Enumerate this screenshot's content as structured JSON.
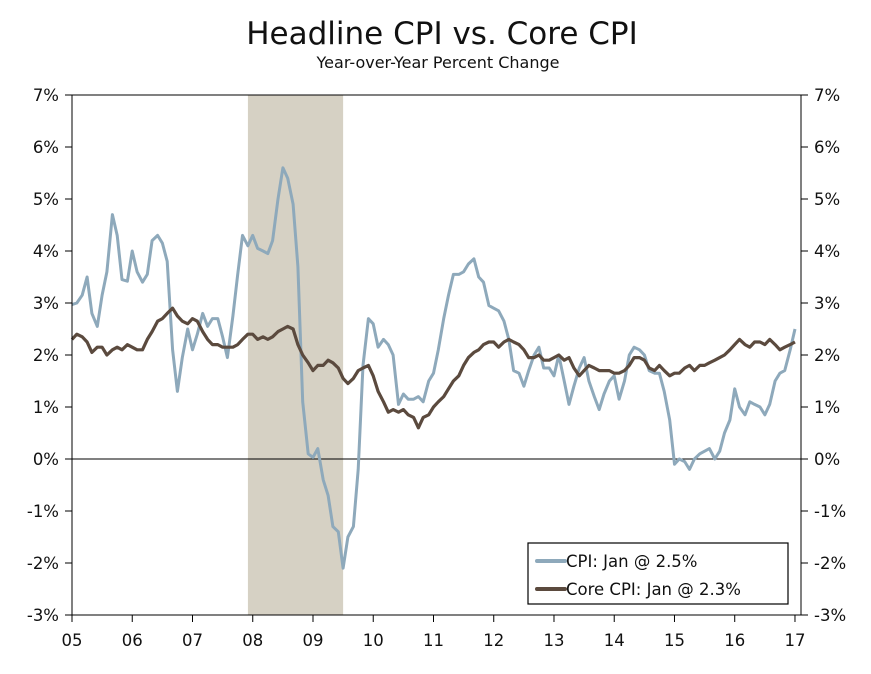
{
  "chart_data": {
    "type": "line",
    "title": "Headline CPI vs. Core CPI",
    "subtitle": "Year-over-Year Percent Change",
    "xlabel": "",
    "ylabel": "",
    "ylim": [
      -3,
      7
    ],
    "xlim": [
      2005.0,
      2017.1
    ],
    "grid": false,
    "legend_position": "bottom-right",
    "x_tick_labels": [
      "05",
      "06",
      "07",
      "08",
      "09",
      "10",
      "11",
      "12",
      "13",
      "14",
      "15",
      "16",
      "17"
    ],
    "y_tick_labels": [
      "7%",
      "6%",
      "5%",
      "4%",
      "3%",
      "2%",
      "1%",
      "0%",
      "-1%",
      "-2%",
      "-3%"
    ],
    "recession": {
      "start": 2007.92,
      "end": 2009.5,
      "color": "#d6d1c4"
    },
    "series": [
      {
        "name": "CPI",
        "legend_label": "CPI: Jan @ 2.5%",
        "color": "#8ea9bb",
        "points": [
          [
            2005.0,
            2.97
          ],
          [
            2005.08,
            3.0
          ],
          [
            2005.17,
            3.15
          ],
          [
            2005.25,
            3.5
          ],
          [
            2005.33,
            2.8
          ],
          [
            2005.42,
            2.55
          ],
          [
            2005.5,
            3.15
          ],
          [
            2005.58,
            3.6
          ],
          [
            2005.67,
            4.7
          ],
          [
            2005.75,
            4.3
          ],
          [
            2005.83,
            3.45
          ],
          [
            2005.92,
            3.42
          ],
          [
            2006.0,
            4.0
          ],
          [
            2006.08,
            3.6
          ],
          [
            2006.17,
            3.4
          ],
          [
            2006.25,
            3.55
          ],
          [
            2006.33,
            4.2
          ],
          [
            2006.42,
            4.3
          ],
          [
            2006.5,
            4.15
          ],
          [
            2006.58,
            3.8
          ],
          [
            2006.67,
            2.1
          ],
          [
            2006.75,
            1.3
          ],
          [
            2006.83,
            1.95
          ],
          [
            2006.92,
            2.5
          ],
          [
            2007.0,
            2.1
          ],
          [
            2007.08,
            2.4
          ],
          [
            2007.17,
            2.8
          ],
          [
            2007.25,
            2.55
          ],
          [
            2007.33,
            2.7
          ],
          [
            2007.42,
            2.7
          ],
          [
            2007.5,
            2.35
          ],
          [
            2007.58,
            1.95
          ],
          [
            2007.67,
            2.75
          ],
          [
            2007.75,
            3.55
          ],
          [
            2007.83,
            4.3
          ],
          [
            2007.92,
            4.1
          ],
          [
            2008.0,
            4.3
          ],
          [
            2008.08,
            4.05
          ],
          [
            2008.17,
            4.0
          ],
          [
            2008.25,
            3.95
          ],
          [
            2008.33,
            4.2
          ],
          [
            2008.42,
            5.0
          ],
          [
            2008.5,
            5.6
          ],
          [
            2008.58,
            5.4
          ],
          [
            2008.67,
            4.9
          ],
          [
            2008.75,
            3.7
          ],
          [
            2008.83,
            1.1
          ],
          [
            2008.92,
            0.1
          ],
          [
            2009.0,
            0.03
          ],
          [
            2009.08,
            0.2
          ],
          [
            2009.17,
            -0.4
          ],
          [
            2009.25,
            -0.7
          ],
          [
            2009.33,
            -1.3
          ],
          [
            2009.42,
            -1.4
          ],
          [
            2009.5,
            -2.1
          ],
          [
            2009.58,
            -1.5
          ],
          [
            2009.67,
            -1.3
          ],
          [
            2009.75,
            -0.2
          ],
          [
            2009.83,
            1.8
          ],
          [
            2009.92,
            2.7
          ],
          [
            2010.0,
            2.6
          ],
          [
            2010.08,
            2.15
          ],
          [
            2010.17,
            2.3
          ],
          [
            2010.25,
            2.2
          ],
          [
            2010.33,
            2.0
          ],
          [
            2010.42,
            1.05
          ],
          [
            2010.5,
            1.25
          ],
          [
            2010.58,
            1.15
          ],
          [
            2010.67,
            1.15
          ],
          [
            2010.75,
            1.2
          ],
          [
            2010.83,
            1.1
          ],
          [
            2010.92,
            1.5
          ],
          [
            2011.0,
            1.65
          ],
          [
            2011.08,
            2.1
          ],
          [
            2011.17,
            2.7
          ],
          [
            2011.25,
            3.15
          ],
          [
            2011.33,
            3.55
          ],
          [
            2011.42,
            3.55
          ],
          [
            2011.5,
            3.6
          ],
          [
            2011.58,
            3.75
          ],
          [
            2011.67,
            3.85
          ],
          [
            2011.75,
            3.5
          ],
          [
            2011.83,
            3.4
          ],
          [
            2011.92,
            2.95
          ],
          [
            2012.0,
            2.9
          ],
          [
            2012.08,
            2.85
          ],
          [
            2012.17,
            2.65
          ],
          [
            2012.25,
            2.3
          ],
          [
            2012.33,
            1.7
          ],
          [
            2012.42,
            1.65
          ],
          [
            2012.5,
            1.4
          ],
          [
            2012.58,
            1.7
          ],
          [
            2012.67,
            2.0
          ],
          [
            2012.75,
            2.15
          ],
          [
            2012.83,
            1.75
          ],
          [
            2012.92,
            1.75
          ],
          [
            2013.0,
            1.6
          ],
          [
            2013.08,
            2.0
          ],
          [
            2013.17,
            1.5
          ],
          [
            2013.25,
            1.05
          ],
          [
            2013.33,
            1.4
          ],
          [
            2013.42,
            1.75
          ],
          [
            2013.5,
            1.95
          ],
          [
            2013.58,
            1.5
          ],
          [
            2013.67,
            1.2
          ],
          [
            2013.75,
            0.95
          ],
          [
            2013.83,
            1.25
          ],
          [
            2013.92,
            1.5
          ],
          [
            2014.0,
            1.6
          ],
          [
            2014.08,
            1.15
          ],
          [
            2014.17,
            1.5
          ],
          [
            2014.25,
            2.0
          ],
          [
            2014.33,
            2.15
          ],
          [
            2014.42,
            2.1
          ],
          [
            2014.5,
            2.0
          ],
          [
            2014.58,
            1.7
          ],
          [
            2014.67,
            1.65
          ],
          [
            2014.75,
            1.65
          ],
          [
            2014.83,
            1.3
          ],
          [
            2014.92,
            0.75
          ],
          [
            2015.0,
            -0.1
          ],
          [
            2015.08,
            0.0
          ],
          [
            2015.17,
            -0.05
          ],
          [
            2015.25,
            -0.2
          ],
          [
            2015.33,
            0.0
          ],
          [
            2015.42,
            0.1
          ],
          [
            2015.5,
            0.15
          ],
          [
            2015.58,
            0.2
          ],
          [
            2015.67,
            0.0
          ],
          [
            2015.75,
            0.15
          ],
          [
            2015.83,
            0.5
          ],
          [
            2015.92,
            0.75
          ],
          [
            2016.0,
            1.35
          ],
          [
            2016.08,
            1.0
          ],
          [
            2016.17,
            0.85
          ],
          [
            2016.25,
            1.1
          ],
          [
            2016.33,
            1.05
          ],
          [
            2016.42,
            1.0
          ],
          [
            2016.5,
            0.85
          ],
          [
            2016.58,
            1.05
          ],
          [
            2016.67,
            1.5
          ],
          [
            2016.75,
            1.65
          ],
          [
            2016.83,
            1.7
          ],
          [
            2016.92,
            2.1
          ],
          [
            2017.0,
            2.5
          ]
        ]
      },
      {
        "name": "Core CPI",
        "legend_label": "Core CPI: Jan @ 2.3%",
        "color": "#5b4a3e",
        "points": [
          [
            2005.0,
            2.3
          ],
          [
            2005.08,
            2.4
          ],
          [
            2005.17,
            2.35
          ],
          [
            2005.25,
            2.25
          ],
          [
            2005.33,
            2.05
          ],
          [
            2005.42,
            2.15
          ],
          [
            2005.5,
            2.15
          ],
          [
            2005.58,
            2.0
          ],
          [
            2005.67,
            2.1
          ],
          [
            2005.75,
            2.15
          ],
          [
            2005.83,
            2.1
          ],
          [
            2005.92,
            2.2
          ],
          [
            2006.0,
            2.15
          ],
          [
            2006.08,
            2.1
          ],
          [
            2006.17,
            2.1
          ],
          [
            2006.25,
            2.3
          ],
          [
            2006.33,
            2.45
          ],
          [
            2006.42,
            2.65
          ],
          [
            2006.5,
            2.7
          ],
          [
            2006.58,
            2.8
          ],
          [
            2006.67,
            2.9
          ],
          [
            2006.75,
            2.75
          ],
          [
            2006.83,
            2.65
          ],
          [
            2006.92,
            2.6
          ],
          [
            2007.0,
            2.7
          ],
          [
            2007.08,
            2.65
          ],
          [
            2007.17,
            2.45
          ],
          [
            2007.25,
            2.3
          ],
          [
            2007.33,
            2.2
          ],
          [
            2007.42,
            2.2
          ],
          [
            2007.5,
            2.15
          ],
          [
            2007.58,
            2.15
          ],
          [
            2007.67,
            2.15
          ],
          [
            2007.75,
            2.2
          ],
          [
            2007.83,
            2.3
          ],
          [
            2007.92,
            2.4
          ],
          [
            2008.0,
            2.4
          ],
          [
            2008.08,
            2.3
          ],
          [
            2008.17,
            2.35
          ],
          [
            2008.25,
            2.3
          ],
          [
            2008.33,
            2.35
          ],
          [
            2008.42,
            2.45
          ],
          [
            2008.5,
            2.5
          ],
          [
            2008.58,
            2.55
          ],
          [
            2008.67,
            2.5
          ],
          [
            2008.75,
            2.2
          ],
          [
            2008.83,
            2.0
          ],
          [
            2008.92,
            1.85
          ],
          [
            2009.0,
            1.7
          ],
          [
            2009.08,
            1.8
          ],
          [
            2009.17,
            1.8
          ],
          [
            2009.25,
            1.9
          ],
          [
            2009.33,
            1.85
          ],
          [
            2009.42,
            1.75
          ],
          [
            2009.5,
            1.55
          ],
          [
            2009.58,
            1.45
          ],
          [
            2009.67,
            1.55
          ],
          [
            2009.75,
            1.7
          ],
          [
            2009.83,
            1.75
          ],
          [
            2009.92,
            1.8
          ],
          [
            2010.0,
            1.6
          ],
          [
            2010.08,
            1.3
          ],
          [
            2010.17,
            1.1
          ],
          [
            2010.25,
            0.9
          ],
          [
            2010.33,
            0.95
          ],
          [
            2010.42,
            0.9
          ],
          [
            2010.5,
            0.95
          ],
          [
            2010.58,
            0.85
          ],
          [
            2010.67,
            0.8
          ],
          [
            2010.75,
            0.6
          ],
          [
            2010.83,
            0.8
          ],
          [
            2010.92,
            0.85
          ],
          [
            2011.0,
            1.0
          ],
          [
            2011.08,
            1.1
          ],
          [
            2011.17,
            1.2
          ],
          [
            2011.25,
            1.35
          ],
          [
            2011.33,
            1.5
          ],
          [
            2011.42,
            1.6
          ],
          [
            2011.5,
            1.8
          ],
          [
            2011.58,
            1.95
          ],
          [
            2011.67,
            2.05
          ],
          [
            2011.75,
            2.1
          ],
          [
            2011.83,
            2.2
          ],
          [
            2011.92,
            2.25
          ],
          [
            2012.0,
            2.25
          ],
          [
            2012.08,
            2.15
          ],
          [
            2012.17,
            2.25
          ],
          [
            2012.25,
            2.3
          ],
          [
            2012.33,
            2.25
          ],
          [
            2012.42,
            2.2
          ],
          [
            2012.5,
            2.1
          ],
          [
            2012.58,
            1.95
          ],
          [
            2012.67,
            1.95
          ],
          [
            2012.75,
            2.0
          ],
          [
            2012.83,
            1.9
          ],
          [
            2012.92,
            1.9
          ],
          [
            2013.0,
            1.95
          ],
          [
            2013.08,
            2.0
          ],
          [
            2013.17,
            1.9
          ],
          [
            2013.25,
            1.95
          ],
          [
            2013.33,
            1.75
          ],
          [
            2013.42,
            1.6
          ],
          [
            2013.5,
            1.7
          ],
          [
            2013.58,
            1.8
          ],
          [
            2013.67,
            1.75
          ],
          [
            2013.75,
            1.7
          ],
          [
            2013.83,
            1.7
          ],
          [
            2013.92,
            1.7
          ],
          [
            2014.0,
            1.65
          ],
          [
            2014.08,
            1.65
          ],
          [
            2014.17,
            1.7
          ],
          [
            2014.25,
            1.8
          ],
          [
            2014.33,
            1.95
          ],
          [
            2014.42,
            1.95
          ],
          [
            2014.5,
            1.9
          ],
          [
            2014.58,
            1.75
          ],
          [
            2014.67,
            1.7
          ],
          [
            2014.75,
            1.8
          ],
          [
            2014.83,
            1.7
          ],
          [
            2014.92,
            1.6
          ],
          [
            2015.0,
            1.65
          ],
          [
            2015.08,
            1.65
          ],
          [
            2015.17,
            1.75
          ],
          [
            2015.25,
            1.8
          ],
          [
            2015.33,
            1.7
          ],
          [
            2015.42,
            1.8
          ],
          [
            2015.5,
            1.8
          ],
          [
            2015.58,
            1.85
          ],
          [
            2015.67,
            1.9
          ],
          [
            2015.75,
            1.95
          ],
          [
            2015.83,
            2.0
          ],
          [
            2015.92,
            2.1
          ],
          [
            2016.0,
            2.2
          ],
          [
            2016.08,
            2.3
          ],
          [
            2016.17,
            2.2
          ],
          [
            2016.25,
            2.15
          ],
          [
            2016.33,
            2.25
          ],
          [
            2016.42,
            2.25
          ],
          [
            2016.5,
            2.2
          ],
          [
            2016.58,
            2.3
          ],
          [
            2016.67,
            2.2
          ],
          [
            2016.75,
            2.1
          ],
          [
            2016.83,
            2.15
          ],
          [
            2016.92,
            2.2
          ],
          [
            2017.0,
            2.25
          ]
        ]
      }
    ]
  }
}
